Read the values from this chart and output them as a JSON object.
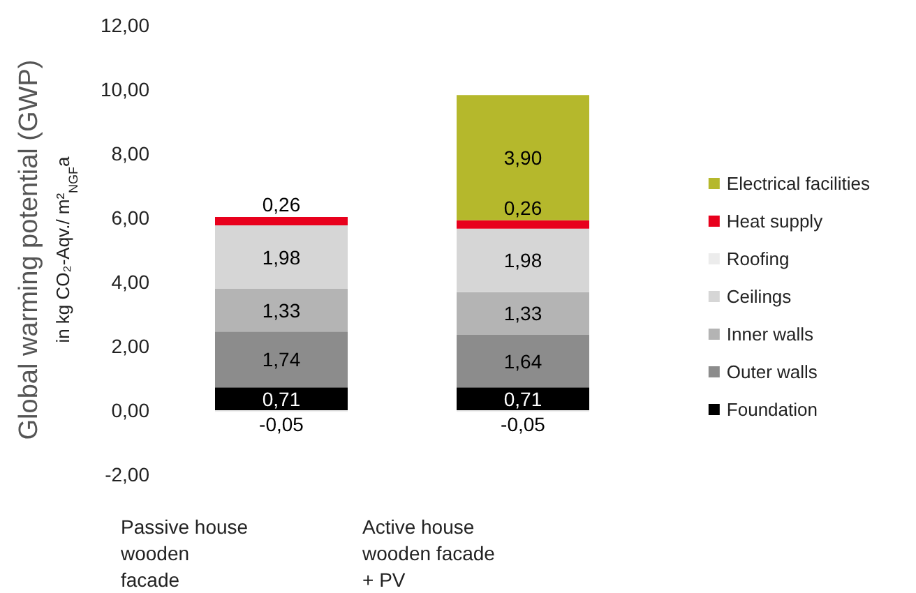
{
  "chart_data": {
    "type": "bar",
    "stacked": true,
    "ylabel": "Global warming potential (GWP)\nin kg CO₂-Aqv./ m²$_{NGF}$a",
    "categories": [
      "Passive house\nwooden\nfacade",
      "Active house\nwooden facade\n+ PV"
    ],
    "series": [
      {
        "name": "Foundation",
        "color": "#000000",
        "values": [
          0.71,
          0.71
        ],
        "value_labels": [
          "0,71",
          "0,71"
        ]
      },
      {
        "name": "Outer walls",
        "color": "#8c8c8c",
        "values": [
          1.74,
          1.64
        ],
        "value_labels": [
          "1,74",
          "1,64"
        ]
      },
      {
        "name": "Inner walls",
        "color": "#b4b4b4",
        "values": [
          1.33,
          1.33
        ],
        "value_labels": [
          "1,33",
          "1,33"
        ]
      },
      {
        "name": "Ceilings",
        "color": "#d6d6d6",
        "values": [
          1.98,
          1.98
        ],
        "value_labels": [
          "1,98",
          "1,98"
        ]
      },
      {
        "name": "Roofing",
        "color": "#ececec",
        "values": [
          -0.05,
          -0.05
        ],
        "value_labels": [
          "-0,05",
          "-0,05"
        ]
      },
      {
        "name": "Heat supply",
        "color": "#e8001c",
        "values": [
          0.26,
          0.26
        ],
        "value_labels": [
          "0,26",
          "0,26"
        ]
      },
      {
        "name": "Electrical facilities",
        "color": "#b5b82c",
        "values": [
          0,
          3.9
        ],
        "value_labels": [
          null,
          "3,90"
        ]
      }
    ],
    "ylim": [
      -2,
      12
    ],
    "yticks": [
      {
        "value": -2,
        "label": "-2,00"
      },
      {
        "value": 0,
        "label": "0,00"
      },
      {
        "value": 2,
        "label": "2,00"
      },
      {
        "value": 4,
        "label": "4,00"
      },
      {
        "value": 6,
        "label": "6,00"
      },
      {
        "value": 8,
        "label": "8,00"
      },
      {
        "value": 10,
        "label": "10,00"
      },
      {
        "value": 12,
        "label": "12,00"
      }
    ],
    "grid": false,
    "legend": "right"
  }
}
